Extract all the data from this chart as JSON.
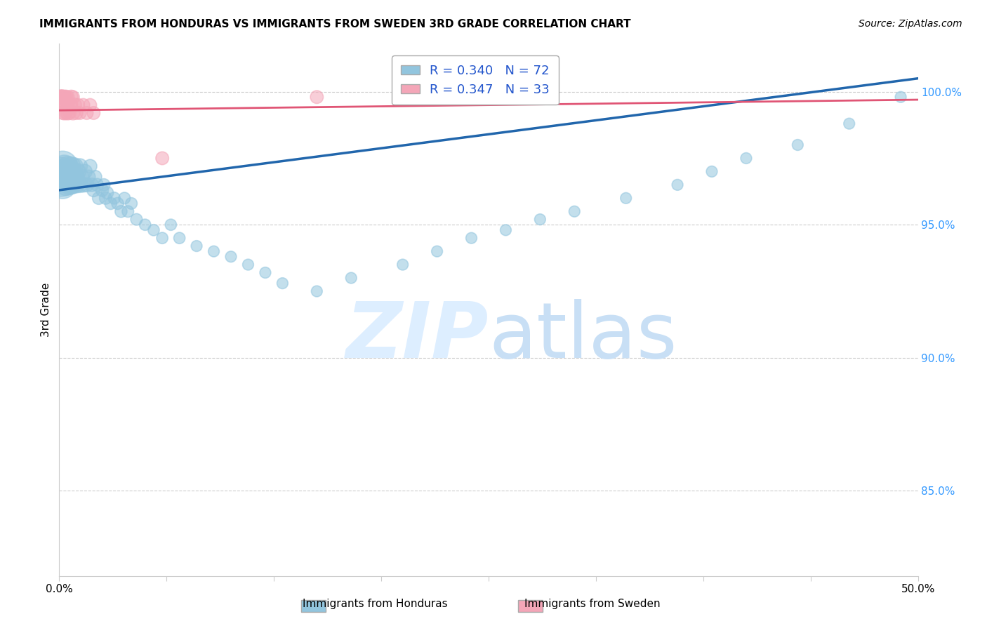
{
  "title": "IMMIGRANTS FROM HONDURAS VS IMMIGRANTS FROM SWEDEN 3RD GRADE CORRELATION CHART",
  "source": "Source: ZipAtlas.com",
  "ylabel": "3rd Grade",
  "xlim": [
    0.0,
    0.5
  ],
  "ylim": [
    0.818,
    1.018
  ],
  "r_honduras": 0.34,
  "n_honduras": 72,
  "r_sweden": 0.347,
  "n_sweden": 33,
  "color_honduras": "#92c5de",
  "color_sweden": "#f4a6b8",
  "trendline_color_honduras": "#2166ac",
  "trendline_color_sweden": "#e05575",
  "watermark_zip": "ZIP",
  "watermark_atlas": "atlas",
  "watermark_color": "#ddeeff",
  "background_color": "#ffffff",
  "honduras_x": [
    0.001,
    0.002,
    0.002,
    0.003,
    0.003,
    0.003,
    0.004,
    0.004,
    0.005,
    0.005,
    0.006,
    0.006,
    0.007,
    0.007,
    0.008,
    0.008,
    0.009,
    0.009,
    0.01,
    0.01,
    0.011,
    0.012,
    0.012,
    0.013,
    0.014,
    0.015,
    0.016,
    0.017,
    0.018,
    0.019,
    0.02,
    0.021,
    0.022,
    0.023,
    0.025,
    0.026,
    0.027,
    0.028,
    0.03,
    0.032,
    0.034,
    0.036,
    0.038,
    0.04,
    0.042,
    0.045,
    0.05,
    0.055,
    0.06,
    0.065,
    0.07,
    0.08,
    0.09,
    0.1,
    0.11,
    0.12,
    0.13,
    0.15,
    0.17,
    0.2,
    0.22,
    0.24,
    0.26,
    0.28,
    0.3,
    0.33,
    0.36,
    0.38,
    0.4,
    0.43,
    0.46,
    0.49
  ],
  "honduras_y": [
    0.968,
    0.972,
    0.965,
    0.97,
    0.968,
    0.972,
    0.965,
    0.97,
    0.968,
    0.972,
    0.965,
    0.968,
    0.972,
    0.965,
    0.97,
    0.965,
    0.968,
    0.972,
    0.965,
    0.968,
    0.97,
    0.965,
    0.972,
    0.968,
    0.965,
    0.97,
    0.965,
    0.968,
    0.972,
    0.965,
    0.963,
    0.968,
    0.965,
    0.96,
    0.963,
    0.965,
    0.96,
    0.962,
    0.958,
    0.96,
    0.958,
    0.955,
    0.96,
    0.955,
    0.958,
    0.952,
    0.95,
    0.948,
    0.945,
    0.95,
    0.945,
    0.942,
    0.94,
    0.938,
    0.935,
    0.932,
    0.928,
    0.925,
    0.93,
    0.935,
    0.94,
    0.945,
    0.948,
    0.952,
    0.955,
    0.96,
    0.965,
    0.97,
    0.975,
    0.98,
    0.988,
    0.998
  ],
  "honduras_size": [
    200,
    120,
    100,
    80,
    70,
    65,
    60,
    58,
    55,
    52,
    50,
    48,
    46,
    44,
    42,
    40,
    38,
    36,
    34,
    33,
    32,
    31,
    30,
    29,
    28,
    27,
    26,
    25,
    24,
    24,
    23,
    22,
    22,
    21,
    21,
    20,
    20,
    20,
    19,
    19,
    19,
    19,
    18,
    18,
    18,
    18,
    17,
    17,
    17,
    17,
    17,
    16,
    16,
    16,
    16,
    16,
    16,
    16,
    16,
    16,
    16,
    16,
    16,
    16,
    16,
    16,
    16,
    16,
    16,
    16,
    16,
    16
  ],
  "sweden_x": [
    0.001,
    0.001,
    0.001,
    0.002,
    0.002,
    0.002,
    0.002,
    0.003,
    0.003,
    0.003,
    0.003,
    0.004,
    0.004,
    0.004,
    0.005,
    0.005,
    0.005,
    0.006,
    0.006,
    0.007,
    0.007,
    0.008,
    0.008,
    0.009,
    0.01,
    0.011,
    0.012,
    0.014,
    0.016,
    0.018,
    0.02,
    0.06,
    0.15
  ],
  "sweden_y": [
    0.998,
    0.998,
    0.995,
    0.998,
    0.995,
    0.998,
    0.992,
    0.998,
    0.995,
    0.992,
    0.998,
    0.995,
    0.992,
    0.998,
    0.995,
    0.992,
    0.998,
    0.995,
    0.992,
    0.998,
    0.995,
    0.992,
    0.998,
    0.995,
    0.992,
    0.995,
    0.992,
    0.995,
    0.992,
    0.995,
    0.992,
    0.975,
    0.998
  ],
  "sweden_size": [
    28,
    25,
    22,
    25,
    22,
    25,
    22,
    25,
    22,
    25,
    22,
    25,
    22,
    25,
    22,
    25,
    22,
    25,
    22,
    25,
    22,
    25,
    22,
    25,
    22,
    22,
    22,
    22,
    22,
    22,
    22,
    22,
    22
  ]
}
